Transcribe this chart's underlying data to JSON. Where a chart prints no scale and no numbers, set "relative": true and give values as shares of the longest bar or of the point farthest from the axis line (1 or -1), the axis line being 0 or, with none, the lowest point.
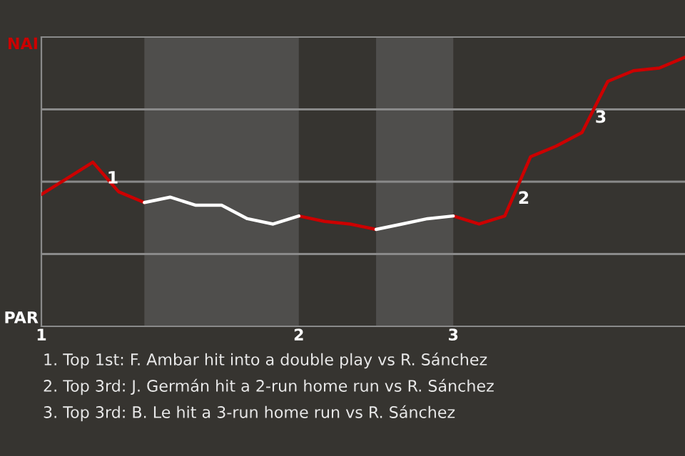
{
  "chart_data": {
    "type": "line",
    "relative": true,
    "categories": [
      "1",
      null,
      null,
      null,
      null,
      null,
      null,
      null,
      null,
      null,
      "2",
      null,
      null,
      null,
      null,
      null,
      "3",
      null,
      null,
      null,
      null,
      null,
      null,
      null,
      null,
      null
    ],
    "series": [
      {
        "color": "#cc0000",
        "values": [
          0.49,
          0.55,
          0.61,
          0.5,
          0.46,
          null,
          null,
          null,
          null,
          null,
          0.41,
          0.39,
          0.38,
          0.36,
          null,
          null,
          0.41,
          0.38,
          0.41,
          0.63,
          0.67,
          0.72,
          0.91,
          0.95,
          0.96,
          1
        ]
      },
      {
        "color": "#ffffff",
        "values": [
          null,
          null,
          null,
          null,
          0.46,
          0.48,
          0.45,
          0.45,
          0.4,
          0.38,
          0.41,
          null,
          null,
          0.36,
          0.38,
          0.4,
          0.41,
          null,
          null,
          null,
          null,
          null,
          null,
          null,
          null,
          null
        ]
      }
    ],
    "grid": "y",
    "annotations": [
      "NAI",
      "PAR",
      "1",
      "2",
      "3",
      "1. Top 1st: F. Ambar hit into a double play vs R. Sánchez",
      "2. Top 3rd: J. Germán hit a 2-run home run vs R. Sánchez",
      "3. Top 3rd: B. Le hit a 3-run home run vs R. Sánchez"
    ]
  }
}
